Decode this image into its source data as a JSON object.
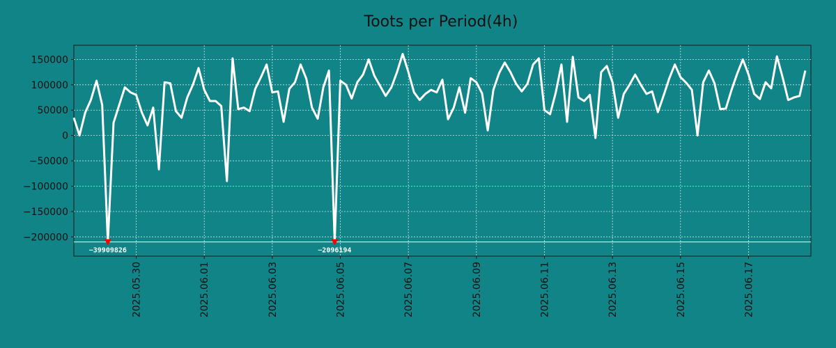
{
  "chart_data": {
    "type": "line",
    "title": "Toots per Period(4h)",
    "xlabel": "",
    "ylabel": "",
    "x_start": "2025.05.28 04:00",
    "x_end": "2025.06.18 20:00",
    "period_hours": 4,
    "ylim": [
      -238000,
      178000
    ],
    "y_ticks": [
      150000,
      100000,
      50000,
      0,
      -50000,
      -100000,
      -150000,
      -200000
    ],
    "y_tick_labels": [
      "150000",
      "100000",
      "50000",
      "0",
      "−50000",
      "−100000",
      "−150000",
      "−200000"
    ],
    "x_ticks": [
      "2025.05.30",
      "2025.06.01",
      "2025.06.03",
      "2025.06.05",
      "2025.06.07",
      "2025.06.09",
      "2025.06.11",
      "2025.06.13",
      "2025.06.15",
      "2025.06.17"
    ],
    "grid": true,
    "clip_floor": -210000,
    "series": [
      {
        "name": "Toots",
        "color": "#ffffff",
        "values": [
          35000,
          0,
          45000,
          70000,
          108000,
          60000,
          -210000,
          25000,
          60000,
          95000,
          85000,
          80000,
          45000,
          20000,
          55000,
          -67000,
          105000,
          103000,
          48000,
          35000,
          75000,
          100000,
          133000,
          90000,
          68000,
          68000,
          58000,
          -90000,
          152000,
          52000,
          55000,
          48000,
          92000,
          115000,
          140000,
          85000,
          87000,
          27000,
          92000,
          105000,
          140000,
          112000,
          55000,
          33000,
          95000,
          128000,
          -210000,
          108000,
          100000,
          73000,
          105000,
          120000,
          150000,
          118000,
          98000,
          78000,
          95000,
          125000,
          161000,
          125000,
          85000,
          70000,
          82000,
          90000,
          85000,
          110000,
          32000,
          55000,
          95000,
          45000,
          113000,
          105000,
          83000,
          10000,
          90000,
          123000,
          144000,
          125000,
          102000,
          87000,
          102000,
          140000,
          152000,
          50000,
          42000,
          85000,
          140000,
          27000,
          155000,
          75000,
          68000,
          80000,
          -5000,
          125000,
          137000,
          105000,
          35000,
          82000,
          100000,
          120000,
          100000,
          82000,
          87000,
          46000,
          78000,
          112000,
          140000,
          115000,
          104000,
          90000,
          0,
          105000,
          128000,
          103000,
          52000,
          53000,
          90000,
          122000,
          150000,
          120000,
          82000,
          72000,
          105000,
          93000,
          156000,
          115000,
          70000,
          75000,
          78000,
          128000
        ]
      }
    ],
    "annotations": [
      {
        "index": 6,
        "label": "−39909826",
        "color": "#ff0000"
      },
      {
        "index": 46,
        "label": "−2096194",
        "color": "#ff0000"
      }
    ]
  }
}
